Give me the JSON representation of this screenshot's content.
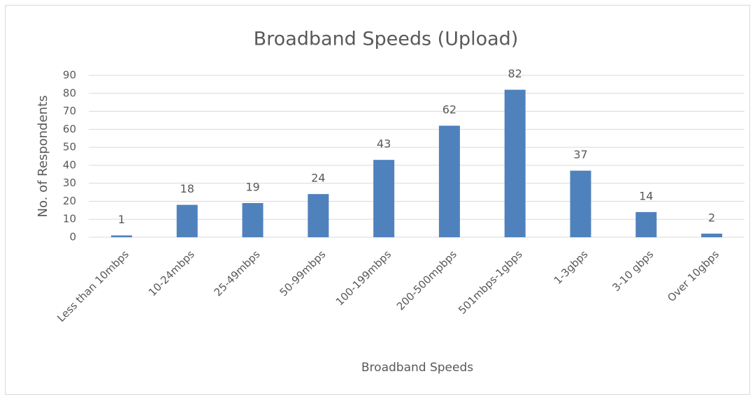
{
  "chart_data": {
    "type": "bar",
    "title": "Broadband Speeds (Upload)",
    "x_label": "Broadband Speeds",
    "y_label": "No. of Respondents",
    "categories": [
      "Less than 10mbps",
      "10-24mbps",
      "25-49mbps",
      "50-99mbps",
      "100-199mbps",
      "200-500mpbps",
      "501mbps-1gbps",
      "1-3gbps",
      "3-10 gbps",
      "Over 10gbps"
    ],
    "values": [
      1,
      18,
      19,
      24,
      43,
      62,
      82,
      37,
      14,
      2
    ],
    "color": "#4f81bd",
    "ylim": [
      0,
      90
    ],
    "yticks": [
      0,
      10,
      20,
      30,
      40,
      50,
      60,
      70,
      80,
      90
    ],
    "grid": true
  }
}
